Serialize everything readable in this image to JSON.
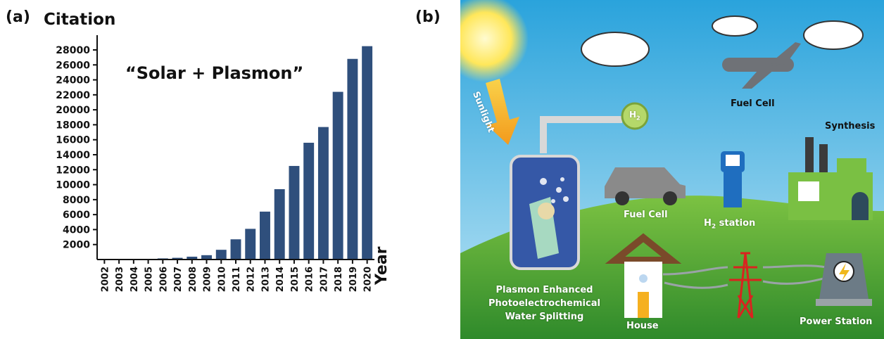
{
  "panels": {
    "a_label": "(a)",
    "b_label": "(b)"
  },
  "chart_data": {
    "type": "bar",
    "ylabel": "Citation",
    "xlabel": "Year",
    "annotation": "“Solar + Plasmon”",
    "categories": [
      "2002",
      "2003",
      "2004",
      "2005",
      "2006",
      "2007",
      "2008",
      "2009",
      "2010",
      "2011",
      "2012",
      "2013",
      "2014",
      "2015",
      "2016",
      "2017",
      "2018",
      "2019",
      "2020"
    ],
    "values": [
      20,
      40,
      60,
      90,
      150,
      230,
      380,
      580,
      1300,
      2700,
      4100,
      6400,
      9400,
      12500,
      15600,
      17700,
      22400,
      26800,
      28500
    ],
    "yticks": [
      2000,
      4000,
      6000,
      8000,
      10000,
      12000,
      14000,
      16000,
      18000,
      20000,
      22000,
      24000,
      26000,
      28000
    ],
    "ylim": [
      0,
      29500
    ],
    "bar_color": "#2f4f7c",
    "grid": false
  },
  "scene": {
    "sunlight_label": "Sunlight",
    "h2_bubble_text": "H",
    "h2_bubble_sub": "2",
    "fuel_cell_top_label": "Fuel Cell",
    "fuel_cell_car_label": "Fuel Cell",
    "synthesis_label": "Synthesis",
    "h2_station_label_main": "H",
    "h2_station_label_sub": "2",
    "h2_station_label_rest": " station",
    "pec_line1": "Plasmon Enhanced",
    "pec_line2": "Photoelectrochemical",
    "pec_line3": "Water Splitting",
    "house_label": "House",
    "power_station_label": "Power Station"
  }
}
